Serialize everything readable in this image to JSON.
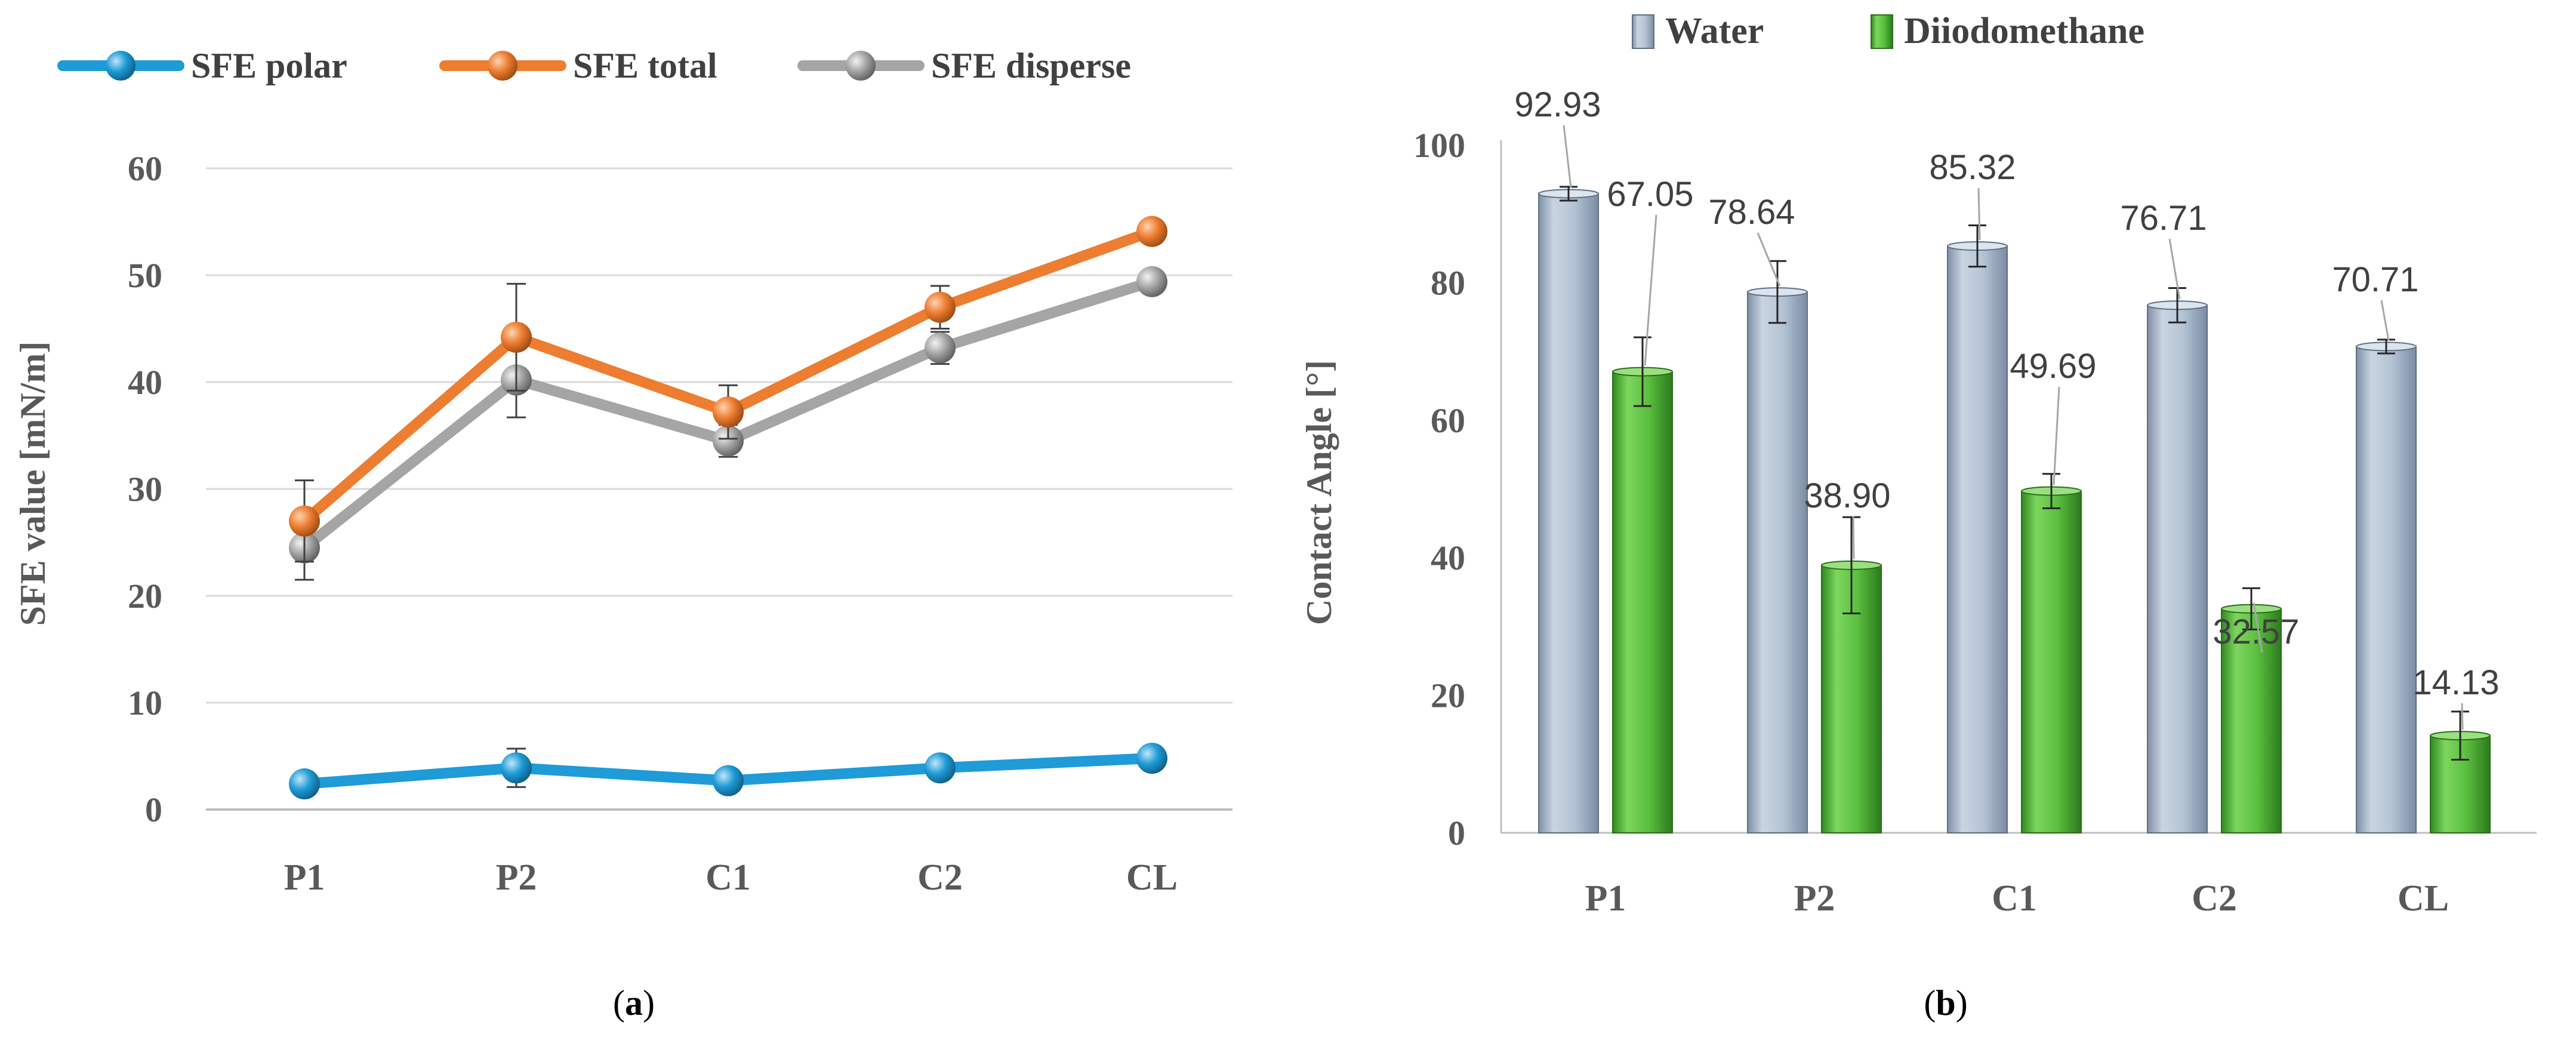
{
  "chart_data": [
    {
      "type": "line",
      "panel_label": "(a)",
      "panel_label_parts": {
        "open": "(",
        "letter": "a",
        "close": ")"
      },
      "ylabel": "SFE value [mN/m]",
      "ylim": [
        0,
        60
      ],
      "yticks": [
        "0",
        "10",
        "20",
        "30",
        "40",
        "50",
        "60"
      ],
      "categories": [
        "P1",
        "P2",
        "C1",
        "C2",
        "CL"
      ],
      "grid": true,
      "legend_position": "top",
      "series": [
        {
          "name": "SFE polar",
          "color": "#1F9BD7",
          "values": [
            2.4,
            3.9,
            2.7,
            3.9,
            4.8
          ],
          "errors": [
            0.7,
            1.8,
            0.8,
            0.8,
            0.6
          ]
        },
        {
          "name": "SFE total",
          "color": "#ED7D31",
          "values": [
            27.0,
            44.2,
            37.2,
            47.0,
            54.1
          ],
          "errors": [
            3.8,
            5.0,
            2.5,
            2.0,
            0.8
          ]
        },
        {
          "name": "SFE disperse",
          "color": "#A5A5A5",
          "values": [
            24.5,
            40.2,
            34.5,
            43.2,
            49.4
          ],
          "errors": [
            3.0,
            3.5,
            1.5,
            1.5,
            0.8
          ]
        }
      ]
    },
    {
      "type": "bar",
      "panel_label": "(b)",
      "panel_label_parts": {
        "open": "(",
        "letter": "b",
        "close": ")"
      },
      "ylabel": "Contact Angle [°]",
      "ylim": [
        0,
        100
      ],
      "yticks": [
        "0",
        "20",
        "40",
        "60",
        "80",
        "100"
      ],
      "categories": [
        "P1",
        "P2",
        "C1",
        "C2",
        "CL"
      ],
      "grid": false,
      "legend_position": "top",
      "series": [
        {
          "name": "Water",
          "color": "#B4C3D4",
          "values": [
            92.93,
            78.64,
            85.32,
            76.71,
            70.71
          ],
          "labels": [
            "92.93",
            "78.64",
            "85.32",
            "76.71",
            "70.71"
          ],
          "errors": [
            1.0,
            4.5,
            3.0,
            2.5,
            1.0
          ]
        },
        {
          "name": "Diiodomethane",
          "color": "#5BBF3F",
          "values": [
            67.05,
            38.9,
            49.69,
            32.57,
            14.13
          ],
          "labels": [
            "67.05",
            "38.90",
            "49.69",
            "32.57",
            "14.13"
          ],
          "errors": [
            5.0,
            7.0,
            2.5,
            3.0,
            3.5
          ]
        }
      ]
    }
  ]
}
